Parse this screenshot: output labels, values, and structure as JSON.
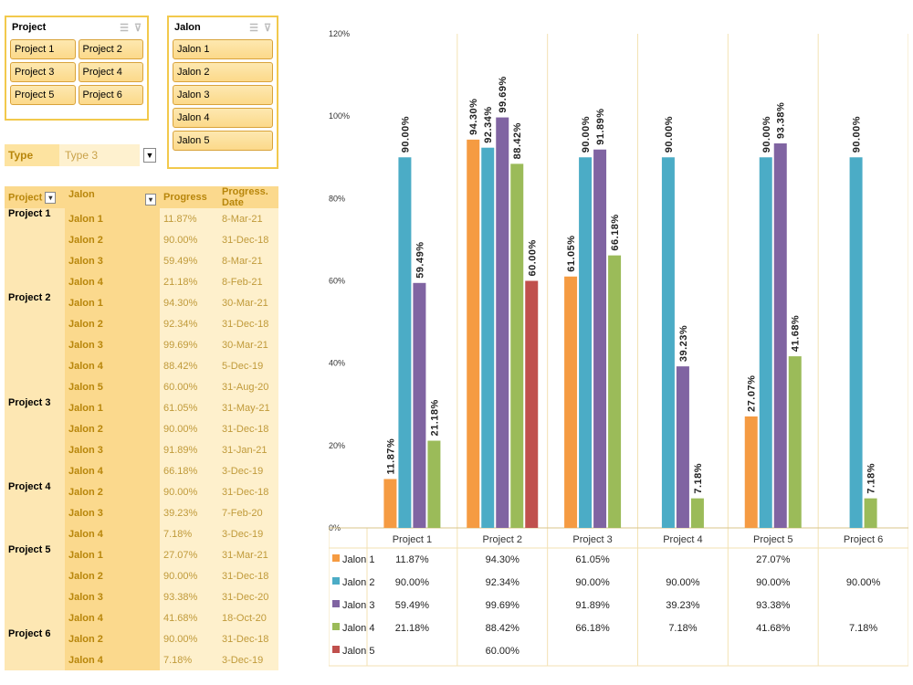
{
  "slicers": {
    "project": {
      "title": "Project",
      "items": [
        "Project 1",
        "Project 2",
        "Project 3",
        "Project 4",
        "Project 5",
        "Project 6"
      ]
    },
    "jalon": {
      "title": "Jalon",
      "items": [
        "Jalon 1",
        "Jalon 2",
        "Jalon 3",
        "Jalon 4",
        "Jalon 5"
      ]
    }
  },
  "filter": {
    "label": "Type",
    "value": "Type 3"
  },
  "pivot": {
    "headers": [
      "Project",
      "Jalon",
      "Progress",
      "Progress. Date"
    ],
    "rows": [
      {
        "project": "Project 1",
        "jalon": "Jalon 1",
        "progress": "11.87%",
        "date": "8-Mar-21"
      },
      {
        "project": "",
        "jalon": "Jalon 2",
        "progress": "90.00%",
        "date": "31-Dec-18"
      },
      {
        "project": "",
        "jalon": "Jalon 3",
        "progress": "59.49%",
        "date": "8-Mar-21"
      },
      {
        "project": "",
        "jalon": "Jalon 4",
        "progress": "21.18%",
        "date": "8-Feb-21"
      },
      {
        "project": "Project 2",
        "jalon": "Jalon 1",
        "progress": "94.30%",
        "date": "30-Mar-21"
      },
      {
        "project": "",
        "jalon": "Jalon 2",
        "progress": "92.34%",
        "date": "31-Dec-18"
      },
      {
        "project": "",
        "jalon": "Jalon 3",
        "progress": "99.69%",
        "date": "30-Mar-21"
      },
      {
        "project": "",
        "jalon": "Jalon 4",
        "progress": "88.42%",
        "date": "5-Dec-19"
      },
      {
        "project": "",
        "jalon": "Jalon 5",
        "progress": "60.00%",
        "date": "31-Aug-20"
      },
      {
        "project": "Project 3",
        "jalon": "Jalon 1",
        "progress": "61.05%",
        "date": "31-May-21"
      },
      {
        "project": "",
        "jalon": "Jalon 2",
        "progress": "90.00%",
        "date": "31-Dec-18"
      },
      {
        "project": "",
        "jalon": "Jalon 3",
        "progress": "91.89%",
        "date": "31-Jan-21"
      },
      {
        "project": "",
        "jalon": "Jalon 4",
        "progress": "66.18%",
        "date": "3-Dec-19"
      },
      {
        "project": "Project 4",
        "jalon": "Jalon 2",
        "progress": "90.00%",
        "date": "31-Dec-18"
      },
      {
        "project": "",
        "jalon": "Jalon 3",
        "progress": "39.23%",
        "date": "7-Feb-20"
      },
      {
        "project": "",
        "jalon": "Jalon 4",
        "progress": "7.18%",
        "date": "3-Dec-19"
      },
      {
        "project": "Project 5",
        "jalon": "Jalon 1",
        "progress": "27.07%",
        "date": "31-Mar-21"
      },
      {
        "project": "",
        "jalon": "Jalon 2",
        "progress": "90.00%",
        "date": "31-Dec-18"
      },
      {
        "project": "",
        "jalon": "Jalon 3",
        "progress": "93.38%",
        "date": "31-Dec-20"
      },
      {
        "project": "",
        "jalon": "Jalon 4",
        "progress": "41.68%",
        "date": "18-Oct-20"
      },
      {
        "project": "Project 6",
        "jalon": "Jalon 2",
        "progress": "90.00%",
        "date": "31-Dec-18"
      },
      {
        "project": "",
        "jalon": "Jalon 4",
        "progress": "7.18%",
        "date": "3-Dec-19"
      }
    ]
  },
  "chart_data": {
    "type": "bar",
    "categories": [
      "Project 1",
      "Project 2",
      "Project 3",
      "Project 4",
      "Project 5",
      "Project 6"
    ],
    "ylim": [
      0,
      120
    ],
    "yticks": [
      "0%",
      "20%",
      "40%",
      "60%",
      "80%",
      "100%",
      "120%"
    ],
    "data_table": true,
    "series": [
      {
        "name": "Jalon 1",
        "color": "#f59b42",
        "values": [
          11.87,
          94.3,
          61.05,
          null,
          27.07,
          null
        ],
        "labels": [
          "11.87%",
          "94.30%",
          "61.05%",
          "",
          "27.07%",
          ""
        ]
      },
      {
        "name": "Jalon 2",
        "color": "#4bacc6",
        "values": [
          90.0,
          92.34,
          90.0,
          90.0,
          90.0,
          90.0
        ],
        "labels": [
          "90.00%",
          "92.34%",
          "90.00%",
          "90.00%",
          "90.00%",
          "90.00%"
        ]
      },
      {
        "name": "Jalon 3",
        "color": "#8064a2",
        "values": [
          59.49,
          99.69,
          91.89,
          39.23,
          93.38,
          null
        ],
        "labels": [
          "59.49%",
          "99.69%",
          "91.89%",
          "39.23%",
          "93.38%",
          ""
        ]
      },
      {
        "name": "Jalon 4",
        "color": "#9bbb59",
        "values": [
          21.18,
          88.42,
          66.18,
          7.18,
          41.68,
          7.18
        ],
        "labels": [
          "21.18%",
          "88.42%",
          "66.18%",
          "7.18%",
          "41.68%",
          "7.18%"
        ]
      },
      {
        "name": "Jalon 5",
        "color": "#c0504d",
        "values": [
          null,
          60.0,
          null,
          null,
          null,
          null
        ],
        "labels": [
          "",
          "60.00%",
          "",
          "",
          "",
          ""
        ]
      }
    ]
  }
}
